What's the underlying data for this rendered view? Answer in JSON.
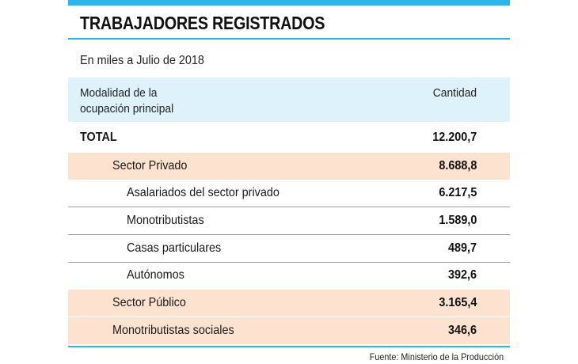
{
  "title": "TRABAJADORES REGISTRADOS",
  "subtitle": "En miles a Julio de 2018",
  "header": {
    "col1_line1": "Modalidad de la",
    "col1_line2": "ocupación principal",
    "col2": "Cantidad"
  },
  "rows": [
    {
      "label": "TOTAL",
      "value": "12.200,7"
    },
    {
      "label": "Sector Privado",
      "value": "8.688,8"
    },
    {
      "label": "Asalariados del sector privado",
      "value": "6.217,5"
    },
    {
      "label": "Monotributistas",
      "value": "1.589,0"
    },
    {
      "label": "Casas particulares",
      "value": "489,7"
    },
    {
      "label": "Autónomos",
      "value": "392,6"
    },
    {
      "label": "Sector Público",
      "value": "3.165,4"
    },
    {
      "label": "Monotributistas sociales",
      "value": "346,6"
    }
  ],
  "source": "Fuente: Ministerio de la Producción",
  "colors": {
    "accent": "#29b6e8",
    "header_bg": "#def2fb",
    "sector_bg": "#fde3cf"
  }
}
